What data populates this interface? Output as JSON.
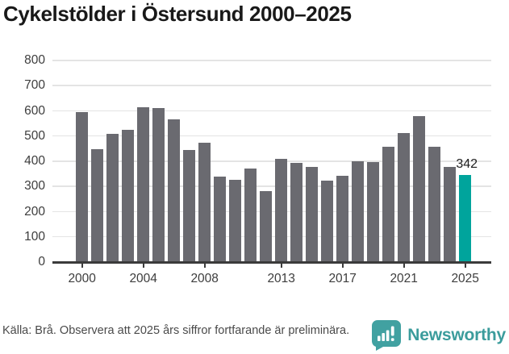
{
  "header": {
    "title": "Cykelstölder i Östersund 2000–2025"
  },
  "chart_data": {
    "type": "bar",
    "title": "Cykelstölder i Östersund 2000–2025",
    "categories": [
      "2000",
      "2001",
      "2002",
      "2003",
      "2004",
      "2005",
      "2006",
      "2007",
      "2008",
      "2009",
      "2010",
      "2011",
      "2012",
      "2013",
      "2014",
      "2015",
      "2016",
      "2017",
      "2018",
      "2019",
      "2020",
      "2021",
      "2022",
      "2023",
      "2024",
      "2025"
    ],
    "values": [
      591,
      444,
      507,
      522,
      612,
      607,
      562,
      441,
      471,
      337,
      324,
      369,
      280,
      406,
      391,
      375,
      320,
      338,
      398,
      395,
      456,
      509,
      577,
      454,
      373,
      342
    ],
    "xlabel": "",
    "ylabel": "",
    "ylim": [
      0,
      800
    ],
    "ytick_step": 100,
    "ytick_labels": [
      "0",
      "100",
      "200",
      "300",
      "400",
      "500",
      "600",
      "700",
      "800"
    ],
    "xtick_labels": [
      "2000",
      "2004",
      "2008",
      "2013",
      "2017",
      "2021",
      "2025"
    ],
    "grid": "horizontal",
    "legend": "none",
    "bar_color": "#6a6a70",
    "highlight": {
      "category": "2025",
      "color": "#00a49c",
      "label": "342"
    }
  },
  "footer": {
    "source": "Källa: Brå. Observera att 2025 års siffror fortfarande är preliminära."
  },
  "logo": {
    "brand": "Newsworthy",
    "color": "#3b9c9c",
    "icon_color": "#41a1a1"
  }
}
